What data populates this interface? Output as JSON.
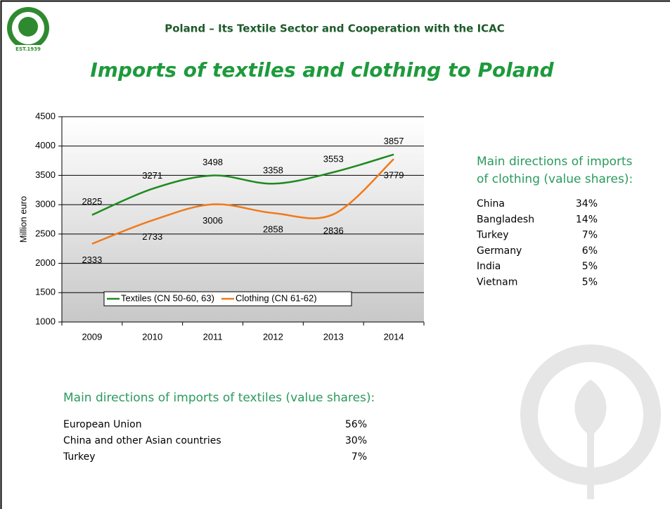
{
  "header": {
    "subtitle": "Poland – Its Textile Sector and Cooperation with the ICAC",
    "title": "Imports of textiles and clothing to Poland",
    "logo_text": "EST.1939"
  },
  "chart_data": {
    "type": "line",
    "y_label": "Million euro",
    "categories": [
      "2009",
      "2010",
      "2011",
      "2012",
      "2013",
      "2014"
    ],
    "series": [
      {
        "name": "Textiles (CN 50-60, 63)",
        "color": "#1f8a1f",
        "values": [
          2825,
          3271,
          3498,
          3358,
          3553,
          3857
        ]
      },
      {
        "name": "Clothing (CN 61-62)",
        "color": "#f07a1c",
        "values": [
          2333,
          2733,
          3006,
          2858,
          2836,
          3779
        ]
      }
    ],
    "ylim": [
      1000,
      4500
    ],
    "yticks": [
      1000,
      1500,
      2000,
      2500,
      3000,
      3500,
      4000,
      4500
    ],
    "grid": true,
    "smooth": true
  },
  "clothing": {
    "heading": [
      "Main directions of imports",
      "of  clothing  (value shares):"
    ],
    "rows": [
      [
        "China",
        "34%"
      ],
      [
        "Bangladesh",
        "14%"
      ],
      [
        "Turkey",
        "7%"
      ],
      [
        "Germany",
        "6%"
      ],
      [
        "India",
        "5%"
      ],
      [
        "Vietnam",
        "5%"
      ]
    ]
  },
  "textiles": {
    "heading": "Main directions of imports of textiles (value shares):",
    "rows": [
      [
        "European Union",
        "56%"
      ],
      [
        "China and other Asian countries",
        "30%"
      ],
      [
        "Turkey",
        "7%"
      ]
    ]
  }
}
